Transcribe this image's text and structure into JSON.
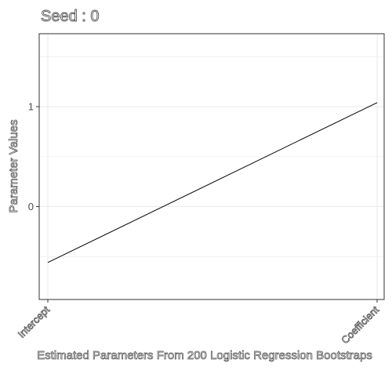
{
  "chart_data": {
    "type": "line",
    "title": "Seed : 0",
    "xlabel": "Estimated Parameters From 200 Logistic Regression Bootstraps",
    "ylabel": "Parameter Values",
    "categories": [
      "Intercept",
      "Coefficient"
    ],
    "values": [
      -0.56,
      1.04
    ],
    "ylim": [
      -0.93,
      1.73
    ],
    "yticks": [
      0,
      1
    ],
    "ytick_labels": [
      "0",
      "1"
    ],
    "grid": true,
    "legend": "none",
    "colors": {
      "line": "#000000",
      "grid": "#ebebeb",
      "panel_border": "#333333"
    }
  }
}
